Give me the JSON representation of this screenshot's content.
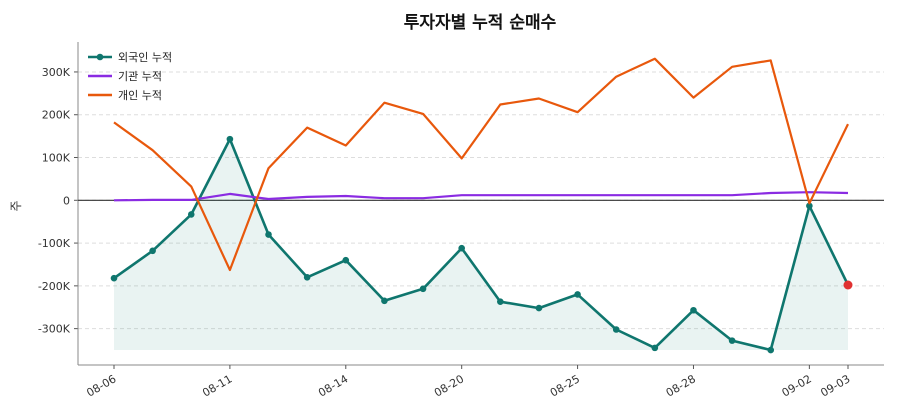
{
  "chart_data": {
    "type": "line",
    "title": "투자자별 누적 순매수",
    "ylabel": "주",
    "xlabel": "",
    "ylim": [
      -385000,
      370000
    ],
    "yticks": [
      -300000,
      -200000,
      -100000,
      0,
      100000,
      200000,
      300000
    ],
    "ytick_labels": [
      "-300K",
      "-200K",
      "-100K",
      "0",
      "100K",
      "200K",
      "300K"
    ],
    "grid": "horizontal dashed",
    "legend_position": "top-left",
    "x": [
      "08-06",
      "08-07",
      "08-08",
      "08-11",
      "08-12",
      "08-13",
      "08-14",
      "08-18",
      "08-19",
      "08-20",
      "08-21",
      "08-22",
      "08-25",
      "08-26",
      "08-27",
      "08-28",
      "08-29",
      "09-01",
      "09-02",
      "09-03"
    ],
    "xtick_labels": [
      "08-06",
      "08-11",
      "08-14",
      "08-20",
      "08-25",
      "08-28",
      "09-02",
      "09-03"
    ],
    "series": [
      {
        "name": "외국인 누적",
        "color": "#0f766e",
        "markers": true,
        "fill": true,
        "values": [
          -182000,
          -118000,
          -33000,
          143000,
          -80000,
          -180000,
          -140000,
          -235000,
          -207000,
          -112000,
          -237000,
          -252000,
          -220000,
          -302000,
          -345000,
          -257000,
          -328000,
          -350000,
          -13000,
          -198000
        ]
      },
      {
        "name": "기관 누적",
        "color": "#8a2be2",
        "markers": false,
        "fill": false,
        "values": [
          0,
          1000,
          1000,
          15000,
          3000,
          8000,
          10000,
          5000,
          5000,
          12000,
          12000,
          12000,
          12000,
          12000,
          12000,
          12000,
          12000,
          17000,
          19000,
          17000
        ]
      },
      {
        "name": "개인 누적",
        "color": "#e8580c",
        "markers": false,
        "fill": false,
        "values": [
          182000,
          117000,
          32000,
          -163000,
          75000,
          170000,
          128000,
          228000,
          202000,
          98000,
          224000,
          238000,
          206000,
          289000,
          331000,
          240000,
          312000,
          327000,
          -7000,
          178000
        ]
      }
    ],
    "highlight_last_point_color": "#e03131"
  }
}
